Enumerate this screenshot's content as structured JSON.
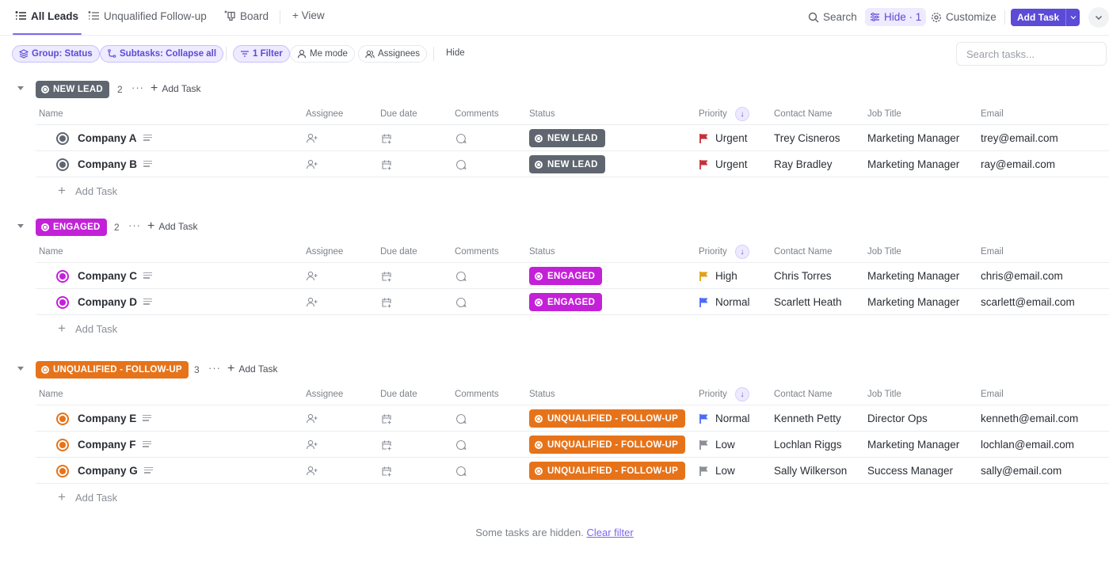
{
  "tabs": [
    {
      "label": "All Leads",
      "icon": "list-icon",
      "active": true
    },
    {
      "label": "Unqualified Follow-up",
      "icon": "list-icon",
      "active": false
    },
    {
      "label": "Board",
      "icon": "board-icon",
      "active": false
    },
    {
      "label": "+ View",
      "icon": "plus-icon",
      "active": false
    }
  ],
  "toolbar": {
    "search_label": "Search",
    "hide_label": "Hide · 1",
    "customize_label": "Customize",
    "add_task_label": "Add Task"
  },
  "filters": {
    "group": "Group: Status",
    "subtasks": "Subtasks: Collapse all",
    "filter": "1 Filter",
    "me_mode": "Me mode",
    "assignees": "Assignees",
    "hide": "Hide",
    "search_placeholder": "Search tasks..."
  },
  "columns": {
    "name": "Name",
    "assignee": "Assignee",
    "due_date": "Due date",
    "comments": "Comments",
    "status": "Status",
    "priority": "Priority",
    "contact": "Contact Name",
    "job": "Job Title",
    "email": "Email"
  },
  "colors": {
    "new_lead": "#5f6670",
    "engaged": "#c321d8",
    "unqualified": "#e6731a",
    "accent": "#5b4bd6",
    "urgent": "#c62f3a",
    "high": "#e0a21b",
    "normal": "#4a6cf7",
    "low": "#8a8f98"
  },
  "groups": [
    {
      "status": "NEW LEAD",
      "count": "2",
      "more": "···",
      "add_task": "Add Task",
      "tasks": [
        {
          "name": "Company A",
          "status": "NEW LEAD",
          "priority": "Urgent",
          "contact": "Trey Cisneros",
          "job": "Marketing Manager",
          "email": "trey@email.com"
        },
        {
          "name": "Company B",
          "status": "NEW LEAD",
          "priority": "Urgent",
          "contact": "Ray Bradley",
          "job": "Marketing Manager",
          "email": "ray@email.com"
        }
      ],
      "add_task_row": "Add Task"
    },
    {
      "status": "ENGAGED",
      "count": "2",
      "more": "···",
      "add_task": "Add Task",
      "tasks": [
        {
          "name": "Company C",
          "status": "ENGAGED",
          "priority": "High",
          "contact": "Chris Torres",
          "job": "Marketing Manager",
          "email": "chris@email.com"
        },
        {
          "name": "Company D",
          "status": "ENGAGED",
          "priority": "Normal",
          "contact": "Scarlett Heath",
          "job": "Marketing Manager",
          "email": "scarlett@email.com"
        }
      ],
      "add_task_row": "Add Task"
    },
    {
      "status": "UNQUALIFIED - FOLLOW-UP",
      "count": "3",
      "more": "···",
      "add_task": "Add Task",
      "tasks": [
        {
          "name": "Company E",
          "status": "UNQUALIFIED - FOLLOW-UP",
          "priority": "Normal",
          "contact": "Kenneth Petty",
          "job": "Director Ops",
          "email": "kenneth@email.com"
        },
        {
          "name": "Company F",
          "status": "UNQUALIFIED - FOLLOW-UP",
          "priority": "Low",
          "contact": "Lochlan Riggs",
          "job": "Marketing Manager",
          "email": "lochlan@email.com"
        },
        {
          "name": "Company G",
          "status": "UNQUALIFIED - FOLLOW-UP",
          "priority": "Low",
          "contact": "Sally Wilkerson",
          "job": "Success Manager",
          "email": "sally@email.com"
        }
      ],
      "add_task_row": "Add Task"
    }
  ],
  "footer": {
    "hidden_text": "Some tasks are hidden.",
    "clear_filter": "Clear filter"
  }
}
